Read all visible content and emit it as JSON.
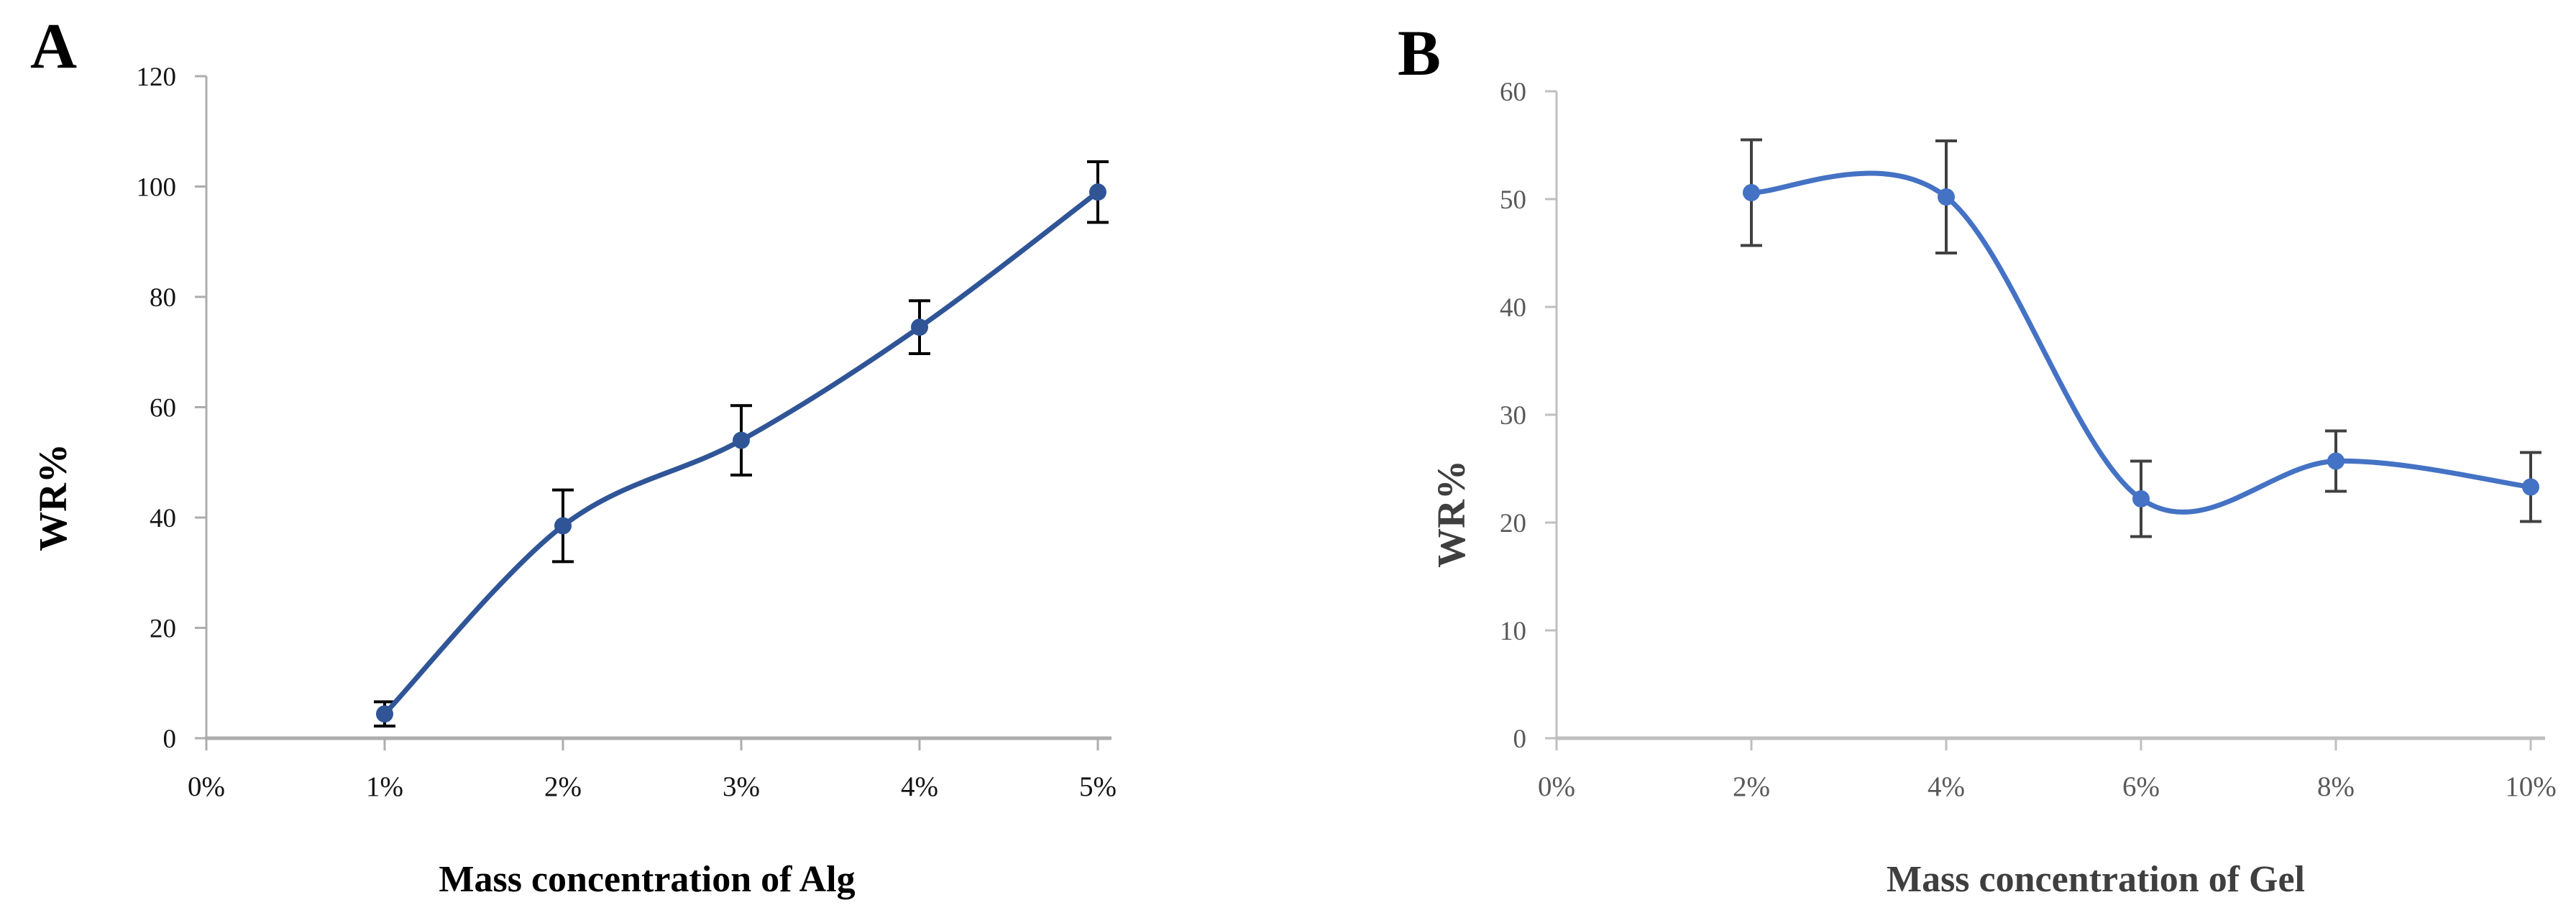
{
  "figure": {
    "panel_a_label": "A",
    "panel_b_label": "B",
    "background_color": "#FFFFFF"
  },
  "chart_data": [
    {
      "panel": "A",
      "type": "line",
      "title": "",
      "xlabel": "Mass concentration of Alg",
      "ylabel": "WR%",
      "x_tick_labels": [
        "0%",
        "1%",
        "2%",
        "3%",
        "4%",
        "5%"
      ],
      "y_tick_labels": [
        "0",
        "20",
        "40",
        "60",
        "80",
        "100",
        "120"
      ],
      "x_percent": [
        1,
        2,
        3,
        4,
        5
      ],
      "values": [
        4.4,
        38.5,
        54.0,
        74.5,
        99.0
      ],
      "error_bars": [
        2.2,
        6.5,
        6.3,
        4.8,
        5.5
      ],
      "xlim_percent": [
        0,
        5
      ],
      "ylim": [
        0,
        120
      ],
      "y_tick_step": 20,
      "smooth": true,
      "grid": false,
      "legend": "none",
      "marker": "circle",
      "line_color": "#2F5597",
      "marker_color": "#2F5597",
      "error_bar_color": "#000000",
      "tick_label_color": "#141414",
      "title_color": "#000000",
      "axis_line_color": "#ADADAD"
    },
    {
      "panel": "B",
      "type": "line",
      "title": "",
      "xlabel": "Mass concentration of Gel",
      "ylabel": "WR%",
      "x_tick_labels": [
        "0%",
        "2%",
        "4%",
        "6%",
        "8%",
        "10%"
      ],
      "y_tick_labels": [
        "0",
        "10",
        "20",
        "30",
        "40",
        "50",
        "60"
      ],
      "x_percent": [
        2,
        4,
        6,
        8,
        10
      ],
      "values": [
        50.6,
        50.2,
        22.2,
        25.7,
        23.3
      ],
      "error_bars": [
        4.9,
        5.2,
        3.5,
        2.8,
        3.2
      ],
      "xlim_percent": [
        0,
        10
      ],
      "ylim": [
        0,
        60
      ],
      "y_tick_step": 10,
      "smooth": true,
      "grid": false,
      "legend": "none",
      "marker": "circle",
      "line_color": "#4472C4",
      "marker_color": "#4472C4",
      "error_bar_color": "#404040",
      "tick_label_color": "#595959",
      "title_color": "#3F3F3F",
      "axis_line_color": "#BFBFBF"
    }
  ]
}
